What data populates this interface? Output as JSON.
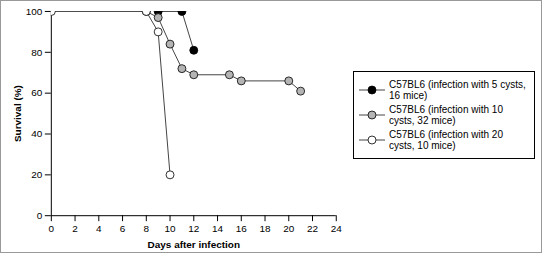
{
  "chart_data": {
    "type": "line",
    "x_label": "Days after infection",
    "y_label": "Survival (%)",
    "xlim": [
      0,
      24
    ],
    "xticks": [
      0,
      2,
      4,
      6,
      8,
      10,
      12,
      14,
      16,
      18,
      20,
      22,
      24
    ],
    "ylim": [
      0,
      100
    ],
    "yticks": [
      0,
      20,
      40,
      60,
      80,
      100
    ],
    "legend": "right",
    "marker": "circle",
    "series": [
      {
        "name": "C57BL6 (infection with 5 cysts, 16 mice)",
        "color": "#000000",
        "x": [
          9,
          11,
          12
        ],
        "values": [
          100,
          100,
          81
        ]
      },
      {
        "name": "C57BL6 (infection with 10 cysts, 32 mice)",
        "color": "#b4b4b4",
        "x": [
          8,
          9,
          10,
          11,
          12,
          15,
          16,
          20,
          21
        ],
        "values": [
          100,
          97,
          84,
          72,
          69,
          69,
          66,
          66,
          61
        ]
      },
      {
        "name": "C57BL6 (infection with 20 cysts, 10 mice)",
        "color": "#ffffff",
        "x": [
          0,
          8,
          9,
          10
        ],
        "values": [
          100,
          100,
          90,
          20
        ]
      }
    ]
  }
}
